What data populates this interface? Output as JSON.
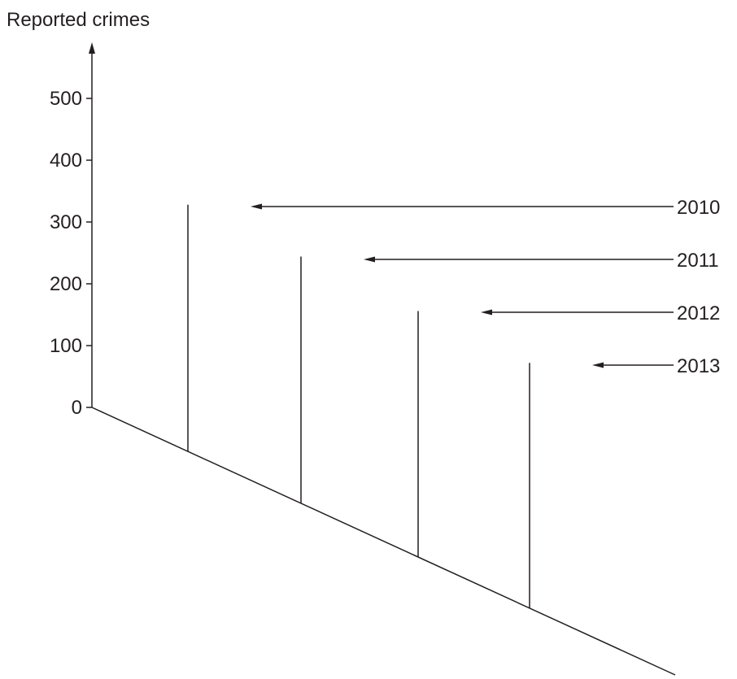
{
  "chart_data": {
    "type": "bar",
    "title": "",
    "ylabel": "Reported crimes",
    "xlabel": "",
    "ylim": [
      0,
      500
    ],
    "yticks": [
      0,
      100,
      200,
      300,
      400,
      500
    ],
    "categories": [
      "2010",
      "2011",
      "2012",
      "2013"
    ],
    "values": [
      328,
      244,
      156,
      72
    ],
    "grid": false,
    "labels_with_arrows": true,
    "colors": {
      "ink": "#231f20",
      "background": "#ffffff"
    }
  }
}
